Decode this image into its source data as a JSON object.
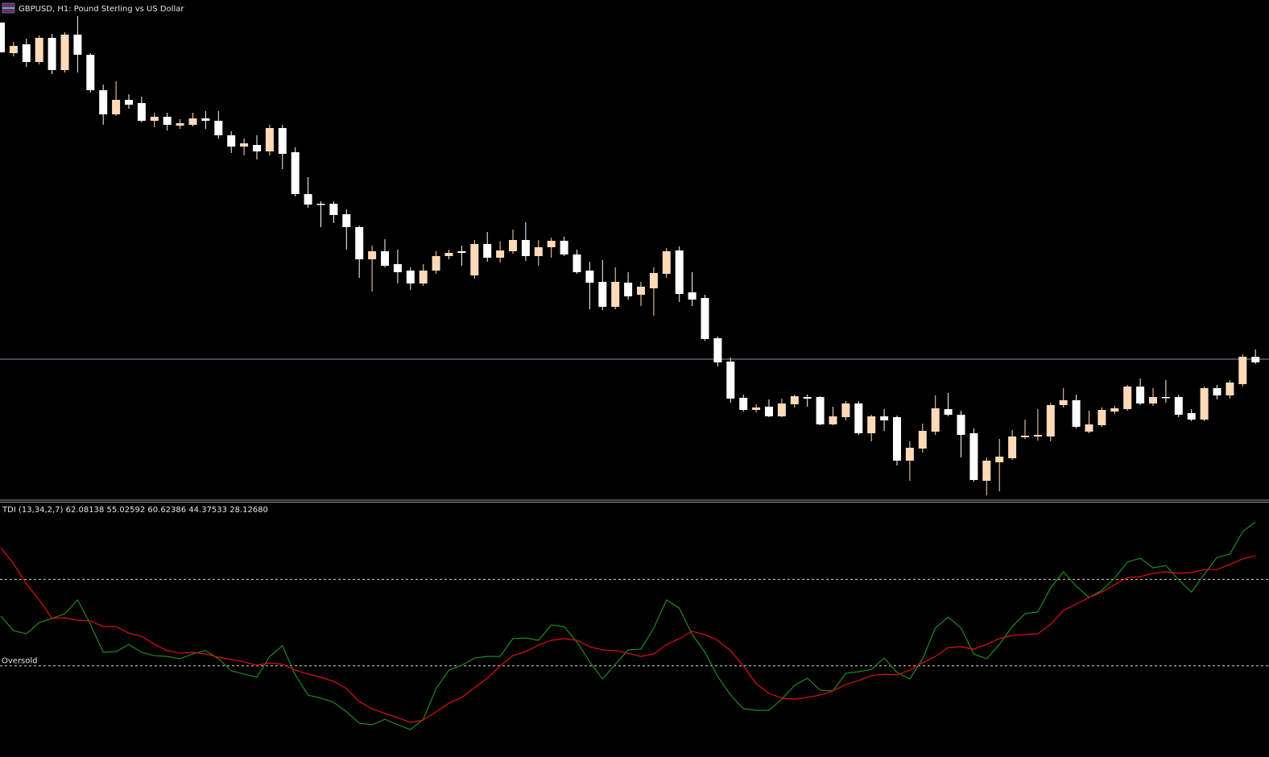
{
  "chart_data": [
    {
      "type": "candlestick",
      "title": "GBPUSD, H1:  Pound Sterling vs US Dollar",
      "up_color": "#ffdab9",
      "down_color": "#ffffff",
      "ylim": [
        1.26652,
        1.27892
      ],
      "price_line": {
        "value": 1.27,
        "color": "#8a93a6"
      },
      "open": [
        1.27836,
        1.2776,
        1.27782,
        1.27738,
        1.27798,
        1.27718,
        1.27806,
        1.27756,
        1.27668,
        1.27608,
        1.27644,
        1.27636,
        1.27592,
        1.27602,
        1.2758,
        1.27582,
        1.27598,
        1.27592,
        1.27556,
        1.27528,
        1.27532,
        1.27516,
        1.27574,
        1.27514,
        1.2741,
        1.27386,
        1.27386,
        1.2736,
        1.27328,
        1.27248,
        1.27268,
        1.27236,
        1.2722,
        1.27188,
        1.2722,
        1.27256,
        1.27268,
        1.27208,
        1.27286,
        1.27252,
        1.27268,
        1.27296,
        1.27256,
        1.27278,
        1.27294,
        1.2726,
        1.2722,
        1.27192,
        1.2713,
        1.2719,
        1.2716,
        1.27176,
        1.27212,
        1.2727,
        1.27166,
        1.27152,
        1.27052,
        1.26994,
        1.26904,
        1.26874,
        1.26882,
        1.26858,
        1.26888,
        1.26906,
        1.26906,
        1.26838,
        1.26856,
        1.2689,
        1.26816,
        1.26858,
        1.26856,
        1.26748,
        1.26778,
        1.2682,
        1.26876,
        1.26862,
        1.26816,
        1.26698,
        1.26744,
        1.26754,
        1.26806,
        1.26808,
        1.26808,
        1.26886,
        1.26898,
        1.2682,
        1.26836,
        1.2687,
        1.26876,
        1.26932,
        1.2689,
        1.26906,
        1.26906,
        1.26866,
        1.2685,
        1.26928,
        1.2691,
        1.26938,
        1.27006
      ],
      "high": [
        1.27836,
        1.27788,
        1.27796,
        1.27804,
        1.27808,
        1.27812,
        1.27852,
        1.2776,
        1.27682,
        1.2769,
        1.27658,
        1.27652,
        1.27612,
        1.27612,
        1.27596,
        1.27612,
        1.27616,
        1.27616,
        1.27566,
        1.27548,
        1.27556,
        1.27582,
        1.27582,
        1.27526,
        1.27452,
        1.27392,
        1.27392,
        1.27372,
        1.27332,
        1.27282,
        1.27298,
        1.27272,
        1.27228,
        1.27236,
        1.27268,
        1.27272,
        1.27282,
        1.27296,
        1.27316,
        1.27292,
        1.27322,
        1.2734,
        1.27296,
        1.27302,
        1.27304,
        1.27272,
        1.27242,
        1.27246,
        1.27228,
        1.27216,
        1.27192,
        1.27228,
        1.27276,
        1.2728,
        1.27216,
        1.2716,
        1.27056,
        1.27004,
        1.26912,
        1.26888,
        1.269,
        1.26902,
        1.26912,
        1.26912,
        1.26908,
        1.26882,
        1.26896,
        1.26896,
        1.26862,
        1.26876,
        1.2686,
        1.26796,
        1.2684,
        1.2691,
        1.26916,
        1.26872,
        1.26828,
        1.26756,
        1.26802,
        1.26824,
        1.2685,
        1.26876,
        1.26892,
        1.26928,
        1.26912,
        1.26872,
        1.2688,
        1.26884,
        1.26936,
        1.26952,
        1.26928,
        1.26948,
        1.26912,
        1.26876,
        1.26932,
        1.26936,
        1.26948,
        1.27012,
        1.27024
      ],
      "low": [
        1.27762,
        1.27752,
        1.27726,
        1.27732,
        1.27708,
        1.27712,
        1.27712,
        1.27662,
        1.27582,
        1.27604,
        1.27622,
        1.27588,
        1.27576,
        1.27568,
        1.27572,
        1.27578,
        1.27572,
        1.27548,
        1.27512,
        1.27506,
        1.27496,
        1.27506,
        1.27472,
        1.27404,
        1.27376,
        1.27328,
        1.27338,
        1.27272,
        1.27202,
        1.27168,
        1.27228,
        1.27188,
        1.27172,
        1.27182,
        1.27212,
        1.27248,
        1.27232,
        1.272,
        1.27242,
        1.2724,
        1.27262,
        1.27244,
        1.27232,
        1.27252,
        1.27256,
        1.27212,
        1.27124,
        1.27122,
        1.27124,
        1.27148,
        1.27132,
        1.27108,
        1.27202,
        1.27142,
        1.27132,
        1.27046,
        1.26982,
        1.26892,
        1.2687,
        1.26868,
        1.26856,
        1.26856,
        1.2688,
        1.26882,
        1.26836,
        1.26836,
        1.26848,
        1.26812,
        1.26796,
        1.26822,
        1.26736,
        1.26698,
        1.26768,
        1.26812,
        1.26858,
        1.26756,
        1.26696,
        1.26662,
        1.26672,
        1.2675,
        1.26802,
        1.26798,
        1.26796,
        1.2688,
        1.26828,
        1.26816,
        1.26832,
        1.26864,
        1.26872,
        1.26886,
        1.26884,
        1.26892,
        1.26856,
        1.26846,
        1.26846,
        1.269,
        1.26902,
        1.26932,
        1.26988
      ],
      "close": [
        1.27762,
        1.27778,
        1.27738,
        1.27798,
        1.27718,
        1.27806,
        1.27756,
        1.27668,
        1.27608,
        1.27644,
        1.27632,
        1.27592,
        1.27602,
        1.27582,
        1.27586,
        1.27598,
        1.27592,
        1.27556,
        1.27528,
        1.27536,
        1.27516,
        1.27574,
        1.2751,
        1.2741,
        1.27384,
        1.27384,
        1.27358,
        1.27328,
        1.27248,
        1.27268,
        1.27232,
        1.27216,
        1.27188,
        1.2722,
        1.27256,
        1.27264,
        1.27264,
        1.27286,
        1.27252,
        1.2727,
        1.27296,
        1.27256,
        1.27278,
        1.27294,
        1.2726,
        1.27216,
        1.2719,
        1.2713,
        1.27192,
        1.27156,
        1.2718,
        1.27214,
        1.27268,
        1.27162,
        1.27148,
        1.2705,
        1.26992,
        1.26902,
        1.26874,
        1.2688,
        1.26858,
        1.2689,
        1.26908,
        1.26902,
        1.26838,
        1.26858,
        1.2689,
        1.26816,
        1.26858,
        1.26848,
        1.26748,
        1.2678,
        1.26822,
        1.26878,
        1.26862,
        1.26812,
        1.267,
        1.26748,
        1.26758,
        1.26808,
        1.2681,
        1.26812,
        1.26886,
        1.26898,
        1.26832,
        1.26838,
        1.26874,
        1.26878,
        1.26932,
        1.2689,
        1.26906,
        1.26904,
        1.26862,
        1.2685,
        1.26928,
        1.2691,
        1.26942,
        1.27006,
        1.26992
      ]
    },
    {
      "type": "line",
      "title": "TDI (13,34,2,7) 62.08138 55.02592 60.62386 44.37533 28.12680",
      "ylim": [
        -4,
        100
      ],
      "levels": [
        {
          "value": 68
        },
        {
          "value": 32,
          "label": "Oversold"
        }
      ],
      "series": [
        {
          "color": "#1f8a1f",
          "values": [
            52.7,
            46.6,
            45.3,
            50.0,
            51.7,
            53.7,
            59.4,
            49.3,
            37.6,
            37.9,
            40.9,
            37.6,
            36.2,
            35.9,
            34.9,
            36.9,
            38.3,
            34.9,
            29.9,
            28.5,
            27.2,
            35.9,
            40.3,
            28.2,
            19.8,
            18.5,
            16.8,
            12.8,
            8.1,
            7.4,
            9.7,
            7.4,
            5.4,
            9.7,
            22.5,
            30.2,
            32.2,
            35.2,
            35.9,
            35.9,
            43.3,
            43.6,
            42.6,
            49.0,
            48.3,
            41.9,
            33.6,
            26.5,
            32.6,
            38.6,
            38.9,
            47.7,
            59.4,
            56.0,
            45.0,
            37.6,
            27.5,
            19.8,
            14.1,
            13.4,
            13.4,
            18.1,
            23.8,
            26.8,
            21.8,
            21.5,
            28.9,
            29.5,
            30.5,
            35.2,
            29.2,
            26.5,
            34.9,
            47.7,
            52.3,
            47.7,
            36.9,
            34.9,
            40.9,
            48.3,
            53.7,
            54.4,
            64.4,
            71.1,
            65.1,
            60.4,
            63.4,
            68.5,
            75.2,
            76.8,
            72.8,
            73.8,
            67.8,
            62.7,
            70.1,
            77.2,
            78.5,
            87.9,
            91.9
          ]
        },
        {
          "color": "#e01010",
          "values": [
            81.2,
            74.5,
            66.1,
            59.4,
            51.7,
            52.0,
            51.0,
            50.7,
            48.3,
            48.3,
            45.6,
            44.3,
            40.9,
            38.3,
            37.2,
            37.6,
            36.9,
            35.6,
            34.6,
            33.6,
            32.2,
            33.2,
            32.6,
            30.2,
            28.5,
            27.2,
            25.5,
            22.5,
            17.1,
            14.1,
            12.1,
            10.4,
            8.4,
            9.4,
            12.8,
            16.4,
            18.8,
            22.8,
            26.8,
            31.9,
            36.2,
            37.9,
            40.6,
            42.6,
            43.3,
            42.6,
            39.9,
            38.6,
            38.3,
            37.2,
            35.9,
            36.9,
            40.9,
            43.3,
            46.3,
            45.0,
            42.6,
            38.3,
            31.9,
            24.5,
            20.5,
            18.5,
            18.1,
            18.8,
            19.8,
            21.5,
            24.2,
            25.8,
            27.9,
            28.5,
            28.2,
            30.2,
            33.2,
            35.9,
            39.6,
            39.9,
            38.9,
            40.9,
            43.3,
            44.6,
            45.0,
            45.3,
            49.3,
            55.0,
            57.7,
            60.4,
            62.7,
            65.8,
            68.8,
            69.1,
            70.5,
            71.1,
            70.5,
            70.8,
            72.1,
            72.1,
            74.2,
            76.5,
            77.9
          ]
        }
      ]
    }
  ]
}
